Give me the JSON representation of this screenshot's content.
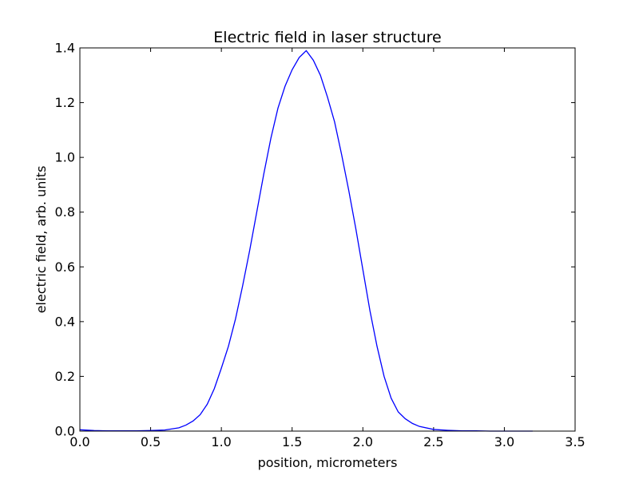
{
  "chart_data": {
    "type": "line",
    "title": "Electric field in laser structure",
    "xlabel": "position, micrometers",
    "ylabel": "electric field, arb. units",
    "xlim": [
      0.0,
      3.5
    ],
    "ylim": [
      0.0,
      1.4
    ],
    "xticks": [
      "0.0",
      "0.5",
      "1.0",
      "1.5",
      "2.0",
      "2.5",
      "3.0",
      "3.5"
    ],
    "yticks": [
      "0.0",
      "0.2",
      "0.4",
      "0.6",
      "0.8",
      "1.0",
      "1.2",
      "1.4"
    ],
    "grid": false,
    "colors": {
      "line": "#0000ff",
      "frame": "#000000"
    },
    "series": [
      {
        "x": [
          0.0,
          0.1,
          0.2,
          0.3,
          0.4,
          0.5,
          0.6,
          0.7,
          0.75,
          0.8,
          0.85,
          0.9,
          0.95,
          1.0,
          1.05,
          1.1,
          1.15,
          1.2,
          1.25,
          1.3,
          1.35,
          1.4,
          1.45,
          1.5,
          1.55,
          1.6,
          1.65,
          1.7,
          1.75,
          1.8,
          1.85,
          1.9,
          1.95,
          2.0,
          2.05,
          2.1,
          2.15,
          2.2,
          2.25,
          2.3,
          2.35,
          2.4,
          2.5,
          2.6,
          2.7,
          2.8,
          2.9,
          3.0,
          3.1,
          3.2
        ],
        "y": [
          0.005,
          0.002,
          0.001,
          0.001,
          0.001,
          0.002,
          0.004,
          0.012,
          0.022,
          0.037,
          0.06,
          0.098,
          0.155,
          0.23,
          0.31,
          0.41,
          0.53,
          0.66,
          0.8,
          0.94,
          1.07,
          1.18,
          1.26,
          1.32,
          1.365,
          1.39,
          1.355,
          1.3,
          1.22,
          1.13,
          1.01,
          0.88,
          0.74,
          0.59,
          0.44,
          0.31,
          0.2,
          0.12,
          0.07,
          0.045,
          0.028,
          0.017,
          0.006,
          0.003,
          0.001,
          0.001,
          0.0,
          0.0,
          0.0,
          0.0
        ]
      }
    ]
  }
}
